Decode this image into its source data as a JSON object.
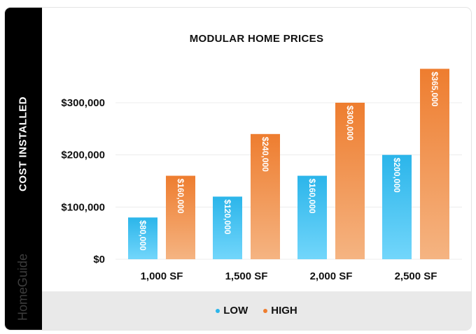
{
  "brand": "HomeGuide",
  "colors": {
    "low_top": "#2bb5ea",
    "low_bottom": "#72d6fb",
    "high_top": "#ee7d2f",
    "high_bottom": "#f5b482",
    "low_legend": "#2bb5ea",
    "high_legend": "#ee7d2f"
  },
  "chart_data": {
    "type": "bar",
    "title": "MODULAR HOME PRICES",
    "ylabel": "COST INSTALLED",
    "xlabel": "",
    "categories": [
      "1,000 SF",
      "1,500 SF",
      "2,000 SF",
      "2,500 SF"
    ],
    "series": [
      {
        "name": "LOW",
        "values": [
          80000,
          120000,
          160000,
          200000
        ],
        "labels": [
          "$80,000",
          "$120,000",
          "$160,000",
          "$200,000"
        ]
      },
      {
        "name": "HIGH",
        "values": [
          160000,
          240000,
          300000,
          365000
        ],
        "labels": [
          "$160,000",
          "$240,000",
          "$300,000",
          "$365,000"
        ]
      }
    ],
    "yticks": [
      0,
      100000,
      200000,
      300000
    ],
    "ytick_labels": [
      "$0",
      "$100,000",
      "$200,000",
      "$300,000"
    ],
    "ylim": [
      0,
      365000
    ],
    "grid": true,
    "legend_position": "bottom"
  }
}
